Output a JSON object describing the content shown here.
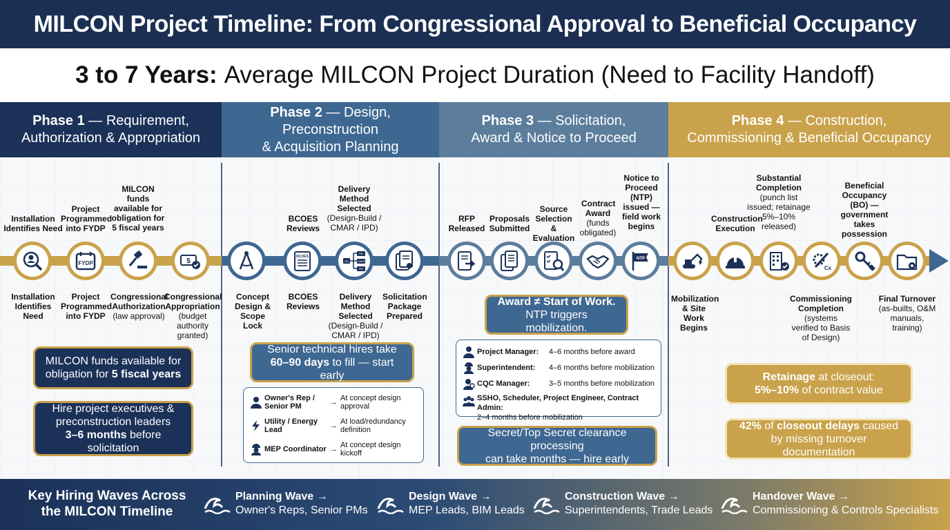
{
  "title": "MILCON Project Timeline: From Congressional Approval to Beneficial Occupancy",
  "subtitle": {
    "bold": "3 to 7 Years:",
    "rest": "Average MILCON Project Duration (Need to Facility Handoff)"
  },
  "phases": [
    {
      "num": "Phase 1",
      "dash": " — Requirement,",
      "line2": "Authorization & Appropriation"
    },
    {
      "num": "Phase 2",
      "dash": " — Design, Preconstruction",
      "line2": "& Acquisition Planning"
    },
    {
      "num": "Phase 3",
      "dash": " — Solicitation,",
      "line2": "Award & Notice to Proceed"
    },
    {
      "num": "Phase 4",
      "dash": " — Construction,",
      "line2": "Commissioning & Beneficial Occupancy"
    }
  ],
  "milestones_above": [
    {
      "title": "Installation Identifies Need",
      "note": ""
    },
    {
      "title": "Project Programmed into FYDP",
      "note": ""
    },
    {
      "title": "MILCON funds available for obligation for 5 fiscal years",
      "note": ""
    },
    {
      "title": "BCOES Reviews",
      "note": ""
    },
    {
      "title": "Delivery Method Selected",
      "note": "(Design-Build / CMAR / IPD)"
    },
    {
      "title": "RFP Released",
      "note": ""
    },
    {
      "title": "Proposals Submitted",
      "note": ""
    },
    {
      "title": "Source Selection & Evaluation",
      "note": ""
    },
    {
      "title": "Contract Award",
      "note": "(funds obligated)"
    },
    {
      "title": "Notice to Proceed (NTP) issued — field work begins",
      "note": ""
    },
    {
      "title": "Construction Execution",
      "note": ""
    },
    {
      "title": "Substantial Completion",
      "note": "(punch list issued; retainage 5%–10% released)"
    },
    {
      "title": "Beneficial Occupancy (BO) — government takes possession",
      "note": ""
    }
  ],
  "milestones_below": [
    {
      "title": "Installation Identifies Need",
      "note": ""
    },
    {
      "title": "Project Programmed into FYDP",
      "note": ""
    },
    {
      "title": "Congressional Authorization",
      "note": "(law approval)"
    },
    {
      "title": "Congressional Appropriation",
      "note": "(budget authority granted)"
    },
    {
      "title": "Concept Design & Scope Lock",
      "note": ""
    },
    {
      "title": "BCOES Reviews",
      "note": ""
    },
    {
      "title": "Delivery Method Selected",
      "note": "(Design-Build / CMAR / IPD)"
    },
    {
      "title": "Solicitation Package Prepared",
      "note": ""
    },
    {
      "title": "Mobilization & Site Work Begins",
      "note": ""
    },
    {
      "title": "Commissioning Completion",
      "note": "(systems verified to Basis of Design)"
    },
    {
      "title": "Final Turnover",
      "note": "(as-builts, O&M manuals, training)"
    }
  ],
  "icon_text": {
    "fydp": "FYDP",
    "bcoes": "BCOES",
    "db": "DB",
    "cmar": "CMAR",
    "ipd": "IPD",
    "ntp": "NTP",
    "cx": "Cx"
  },
  "callouts": {
    "funds": {
      "pre": "MILCON funds available for obligation for ",
      "bold": "5 fiscal years"
    },
    "hire_exec": {
      "line1": "Hire project executives &",
      "line2": "preconstruction leaders",
      "bold": "3–6 months",
      "post": " before solicitation"
    },
    "senior_tech": {
      "line1": "Senior technical hires take",
      "bold": "60–90 days",
      "post": " to fill — start early"
    },
    "award": {
      "bold": "Award ≠ Start of Work.",
      "line2": "NTP triggers mobilization."
    },
    "clearance": {
      "line1": "Secret/Top Secret clearance processing",
      "line2": "can take months — hire early"
    },
    "retainage": {
      "bold1": "Retainage",
      "mid": " at closeout:",
      "bold2": "5%–10%",
      "post": " of contract value"
    },
    "closeout": {
      "bold1": "42%",
      "mid": " of ",
      "bold2": "closeout delays",
      "post": " caused by missing turnover documentation"
    }
  },
  "design_hires": [
    {
      "role": "Owner's Rep / Senior PM",
      "timing": "At concept design approval"
    },
    {
      "role": "Utility / Energy Lead",
      "timing": "At load/redundancy definition"
    },
    {
      "role": "MEP Coordinator",
      "timing": "At concept design kickoff"
    }
  ],
  "construction_hires": [
    {
      "role": "Project Manager:",
      "timing": "4–6 months before award"
    },
    {
      "role": "Superintendent:",
      "timing": "4–6 months before mobilization"
    },
    {
      "role": "CQC Manager:",
      "timing": "3–5 months before mobilization"
    },
    {
      "role": "SSHO, Scheduler, Project Engineer, Contract Admin:",
      "timing": "2–4 months before mobilization"
    }
  ],
  "footer": {
    "title": "Key Hiring Waves Across the MILCON Timeline",
    "waves": [
      {
        "name": "Planning Wave →",
        "roles": "Owner's Reps, Senior PMs"
      },
      {
        "name": "Design Wave →",
        "roles": "MEP Leads, BIM Leads"
      },
      {
        "name": "Construction Wave →",
        "roles": "Superintendents, Trade Leads"
      },
      {
        "name": "Handover Wave →",
        "roles": "Commissioning & Controls Specialists"
      }
    ]
  },
  "colors": {
    "navy": "#1b3158",
    "steel": "#3e6791",
    "slate": "#5c7d9c",
    "gold": "#c9a24b"
  }
}
